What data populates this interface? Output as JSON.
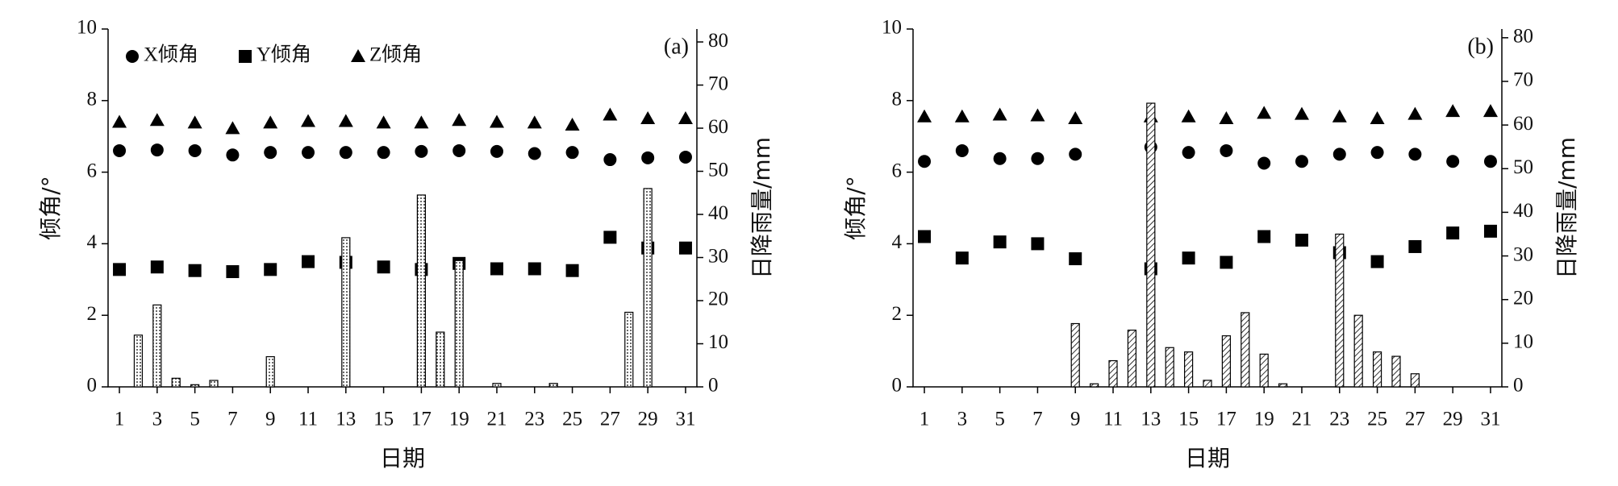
{
  "chart_data": [
    {
      "type": "combo",
      "annotation": "(a)",
      "xlabel": "日期",
      "ylabel": "倾角/°",
      "y2label": "日降雨量/mm",
      "xlim": [
        0.4,
        31.6
      ],
      "xticks": [
        1,
        3,
        5,
        7,
        9,
        11,
        13,
        15,
        17,
        19,
        21,
        23,
        25,
        27,
        29,
        31
      ],
      "ylim": [
        0,
        10
      ],
      "yticks": [
        0,
        2,
        4,
        6,
        8,
        10
      ],
      "y2lim": [
        0,
        83
      ],
      "y2ticks": [
        0,
        10,
        20,
        30,
        40,
        50,
        60,
        70,
        80
      ],
      "legend": "top-left",
      "bar_pattern": "dots",
      "series": [
        {
          "name": "X倾角",
          "marker": "circle",
          "color": "#000000",
          "x": [
            1,
            3,
            5,
            7,
            9,
            11,
            13,
            15,
            17,
            19,
            21,
            23,
            25,
            27,
            29,
            31
          ],
          "values": [
            6.6,
            6.62,
            6.6,
            6.48,
            6.55,
            6.55,
            6.55,
            6.55,
            6.58,
            6.6,
            6.58,
            6.52,
            6.55,
            6.35,
            6.4,
            6.42
          ]
        },
        {
          "name": "Y倾角",
          "marker": "square",
          "color": "#000000",
          "x": [
            1,
            3,
            5,
            7,
            9,
            11,
            13,
            15,
            17,
            19,
            21,
            23,
            25,
            27,
            29,
            31
          ],
          "values": [
            3.28,
            3.35,
            3.25,
            3.22,
            3.28,
            3.5,
            3.48,
            3.35,
            3.28,
            3.45,
            3.3,
            3.3,
            3.25,
            4.18,
            3.88,
            3.88
          ]
        },
        {
          "name": "Z倾角",
          "marker": "triangle",
          "color": "#000000",
          "x": [
            1,
            3,
            5,
            7,
            9,
            11,
            13,
            15,
            17,
            19,
            21,
            23,
            25,
            27,
            29,
            31
          ],
          "values": [
            7.4,
            7.45,
            7.38,
            7.22,
            7.38,
            7.42,
            7.42,
            7.38,
            7.38,
            7.45,
            7.4,
            7.38,
            7.32,
            7.6,
            7.5,
            7.5
          ]
        },
        {
          "marker": "bar",
          "axis": "y2",
          "color": "#000000",
          "x": [
            2,
            3,
            4,
            5,
            6,
            9,
            13,
            17,
            18,
            19,
            21,
            24,
            28,
            29
          ],
          "values": [
            12,
            19,
            2,
            0.5,
            1.5,
            7,
            34.6,
            44.5,
            12.7,
            29.3,
            0.8,
            0.8,
            17.3,
            46
          ]
        }
      ]
    },
    {
      "type": "combo",
      "annotation": "(b)",
      "xlabel": "日期",
      "ylabel": "倾角/°",
      "y2label": "日降雨量/mm",
      "xlim": [
        0.4,
        31.6
      ],
      "xticks": [
        1,
        3,
        5,
        7,
        9,
        11,
        13,
        15,
        17,
        19,
        21,
        23,
        25,
        27,
        29,
        31
      ],
      "ylim": [
        0,
        10
      ],
      "yticks": [
        0,
        2,
        4,
        6,
        8,
        10
      ],
      "y2lim": [
        0,
        82
      ],
      "y2ticks": [
        0,
        10,
        20,
        30,
        40,
        50,
        60,
        70,
        80
      ],
      "bar_pattern": "hatch",
      "series": [
        {
          "name": "X倾角",
          "marker": "circle",
          "color": "#000000",
          "x": [
            1,
            3,
            5,
            7,
            9,
            11,
            13,
            15,
            17,
            19,
            21,
            23,
            25,
            27,
            29,
            31
          ],
          "values": [
            6.3,
            6.6,
            6.38,
            6.38,
            6.5,
            null,
            6.7,
            6.55,
            6.6,
            6.25,
            6.3,
            6.5,
            6.55,
            6.5,
            6.3,
            6.3
          ]
        },
        {
          "name": "Y倾角",
          "marker": "square",
          "color": "#000000",
          "x": [
            1,
            3,
            5,
            7,
            9,
            11,
            13,
            15,
            17,
            19,
            21,
            23,
            25,
            27,
            29,
            31
          ],
          "values": [
            4.2,
            3.6,
            4.05,
            4,
            3.58,
            null,
            3.3,
            3.6,
            3.48,
            4.2,
            4.1,
            3.75,
            3.5,
            3.92,
            4.3,
            4.35
          ]
        },
        {
          "name": "Z倾角",
          "marker": "triangle",
          "color": "#000000",
          "x": [
            1,
            3,
            5,
            7,
            9,
            11,
            13,
            15,
            17,
            19,
            21,
            23,
            25,
            27,
            29,
            31
          ],
          "values": [
            7.55,
            7.55,
            7.6,
            7.58,
            7.5,
            null,
            7.55,
            7.55,
            7.5,
            7.65,
            7.62,
            7.55,
            7.5,
            7.62,
            7.7,
            7.7
          ]
        },
        {
          "marker": "bar",
          "axis": "y2",
          "color": "#000000",
          "x": [
            9,
            10,
            11,
            12,
            13,
            14,
            15,
            16,
            17,
            18,
            19,
            20,
            23,
            24,
            25,
            26,
            27
          ],
          "values": [
            14.5,
            0.7,
            6,
            13,
            65,
            9,
            8,
            1.5,
            11.7,
            17,
            7.5,
            0.7,
            35,
            16.4,
            8,
            7,
            3
          ]
        }
      ]
    }
  ]
}
